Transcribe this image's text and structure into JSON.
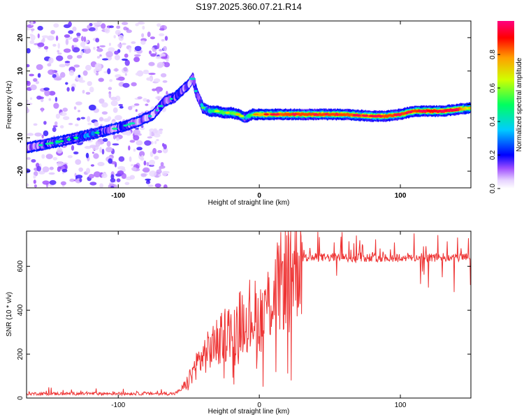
{
  "chart_data": [
    {
      "type": "heatmap",
      "title": "S197.2025.360.07.21.R14",
      "xlabel": "Height of straight line (km)",
      "ylabel": "Frequency (Hz)",
      "xlim": [
        -165,
        150
      ],
      "ylim": [
        -25,
        25
      ],
      "xticks": [
        -100,
        0,
        100
      ],
      "yticks": [
        20,
        10,
        0,
        -10,
        -20
      ],
      "colorbar": {
        "label": "Normalized spectral amplitude",
        "range": [
          0.0,
          1.0
        ],
        "ticks": [
          "0.0",
          "0.2",
          "0.4",
          "0.6",
          "0.8"
        ]
      },
      "ridge": {
        "x": [
          -165,
          -140,
          -120,
          -100,
          -85,
          -75,
          -67,
          -60,
          -55,
          -50,
          -47,
          -45,
          -40,
          -35,
          -30,
          -25,
          -20,
          -15,
          -10,
          -5,
          0,
          20,
          40,
          60,
          80,
          90,
          100,
          110,
          120,
          130,
          140,
          150
        ],
        "y": [
          -13,
          -11,
          -9,
          -7,
          -5,
          -3,
          1,
          2,
          4,
          6,
          8,
          4,
          -1,
          -2,
          -2,
          -2.5,
          -2.5,
          -3,
          -4,
          -3,
          -3,
          -3,
          -3,
          -3,
          -3.5,
          -3.5,
          -3,
          -2,
          -2,
          -2,
          -1.5,
          -1
        ]
      },
      "ridge_amplitude": {
        "x": [
          -165,
          -140,
          -120,
          -100,
          -85,
          -75,
          -67,
          -60,
          -55,
          -50,
          -47,
          -45,
          -40,
          -35,
          -30,
          -25,
          -20,
          -15,
          -10,
          -5,
          0,
          20,
          40,
          60,
          80,
          90,
          100,
          110,
          120,
          130,
          140,
          150
        ],
        "a": [
          0.25,
          0.35,
          0.35,
          0.3,
          0.25,
          0.25,
          0.3,
          0.3,
          0.3,
          0.25,
          0.25,
          0.25,
          0.4,
          0.45,
          0.5,
          0.55,
          0.55,
          0.6,
          0.4,
          0.55,
          0.75,
          0.85,
          0.85,
          0.85,
          0.8,
          0.85,
          0.85,
          0.85,
          0.9,
          0.95,
          0.9,
          0.6
        ]
      },
      "noise_region": [
        -165,
        -65
      ]
    },
    {
      "type": "line",
      "xlabel": "Height of straight line (km)",
      "ylabel": "SNR (10 * v/v)",
      "xlim": [
        -165,
        150
      ],
      "ylim": [
        0,
        760
      ],
      "xticks": [
        -100,
        0,
        100
      ],
      "yticks": [
        0,
        200,
        400,
        600
      ],
      "color": "#ee3333",
      "trend": {
        "x": [
          -165,
          -60,
          -55,
          -50,
          -45,
          -40,
          -35,
          -30,
          -25,
          -20,
          -15,
          -10,
          -5,
          0,
          5,
          10,
          15,
          20,
          25,
          30,
          150
        ],
        "y": [
          20,
          20,
          40,
          80,
          150,
          190,
          220,
          260,
          290,
          310,
          340,
          370,
          390,
          360,
          420,
          470,
          520,
          580,
          620,
          640,
          640
        ]
      }
    }
  ]
}
